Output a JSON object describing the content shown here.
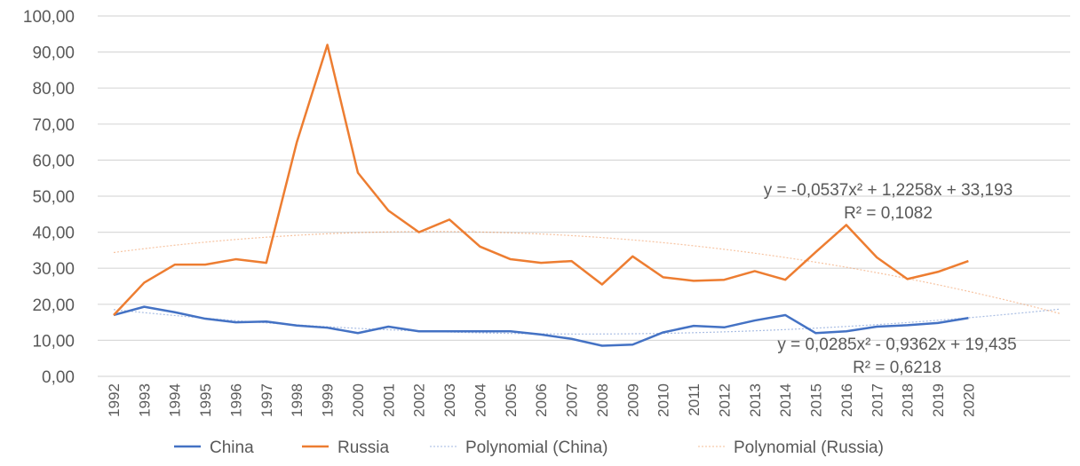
{
  "chart_data": {
    "type": "line",
    "title": "",
    "xlabel": "",
    "ylabel": "",
    "ylim": [
      0,
      100
    ],
    "yticks": [
      "0,00",
      "10,00",
      "20,00",
      "30,00",
      "40,00",
      "50,00",
      "60,00",
      "70,00",
      "80,00",
      "90,00",
      "100,00"
    ],
    "grid": true,
    "legend_position": "bottom",
    "categories": [
      "1992",
      "1993",
      "1994",
      "1995",
      "1996",
      "1997",
      "1998",
      "1999",
      "2000",
      "2001",
      "2002",
      "2003",
      "2004",
      "2005",
      "2006",
      "2007",
      "2008",
      "2009",
      "2010",
      "2011",
      "2012",
      "2013",
      "2014",
      "2015",
      "2016",
      "2017",
      "2018",
      "2019",
      "2020"
    ],
    "series": [
      {
        "name": "China",
        "color": "#4472c4",
        "values": [
          17.0,
          19.3,
          17.8,
          16.0,
          15.0,
          15.2,
          14.1,
          13.5,
          12.0,
          13.8,
          12.5,
          12.5,
          12.5,
          12.5,
          11.6,
          10.4,
          8.5,
          8.8,
          12.2,
          14.0,
          13.6,
          15.5,
          17.0,
          12.0,
          12.5,
          13.8,
          14.2,
          14.8,
          16.2
        ]
      },
      {
        "name": "Russia",
        "color": "#ed7d31",
        "values": [
          17.0,
          26.0,
          31.0,
          31.0,
          32.5,
          31.5,
          65.0,
          92.0,
          56.5,
          46.0,
          40.0,
          43.5,
          36.0,
          32.5,
          31.5,
          32.0,
          25.5,
          33.3,
          27.5,
          26.5,
          26.8,
          29.2,
          26.8,
          34.5,
          42.0,
          33.0,
          27.0,
          29.0,
          32.0
        ]
      }
    ],
    "trendlines": [
      {
        "name": "Polynomial (China)",
        "color": "#4472c4",
        "coefficients": [
          0.0285,
          -0.9362,
          19.435
        ],
        "forward_periods": 3,
        "equation": "y = 0,0285x² - 0,9362x + 19,435",
        "r2": "R² = 0,6218"
      },
      {
        "name": "Polynomial (Russia)",
        "color": "#ed7d31",
        "coefficients": [
          -0.0537,
          1.2258,
          33.193
        ],
        "forward_periods": 3,
        "equation": "y = -0,0537x² + 1,2258x + 33,193",
        "r2": "R² = 0,1082"
      }
    ]
  }
}
